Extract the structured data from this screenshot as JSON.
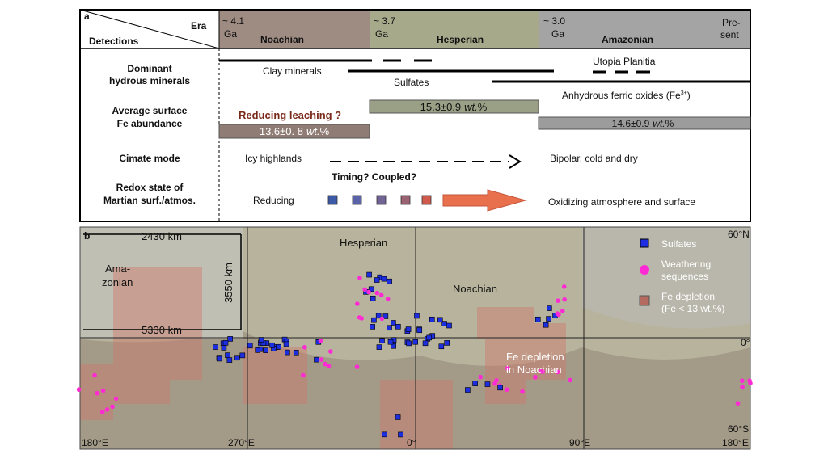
{
  "panel_a": {
    "label": "a",
    "header": {
      "era": "Era",
      "detections": "Detections"
    },
    "eras": [
      {
        "age": "~ 4.1",
        "unit": "Ga",
        "name": "Noachian"
      },
      {
        "age": "~ 3.7",
        "unit": "Ga",
        "name": "Hesperian"
      },
      {
        "age": "~ 3.0",
        "unit": "Ga",
        "name": "Amazonian",
        "end": [
          "Pre-",
          "sent"
        ]
      }
    ],
    "rows": [
      {
        "label": [
          "Dominant",
          "hydrous minerals"
        ],
        "items": [
          "Clay minerals",
          "Sulfates",
          "Utopia Planitia"
        ],
        "oxides": {
          "text": "Anhydrous ferric oxides (Fe",
          "sup": "3+",
          "close": ")"
        }
      },
      {
        "label": [
          "Average surface",
          "Fe abundance"
        ],
        "note": "Reducing leaching ?",
        "bars": [
          {
            "number": "13.6±0. 8",
            "unit": "wt.",
            "suffix": "%"
          },
          {
            "number": "15.3±0.9",
            "unit": "wt.",
            "suffix": "%"
          },
          {
            "number": "14.6±0.9",
            "unit": "wt.",
            "suffix": "%"
          }
        ]
      },
      {
        "label": [
          "Cimate mode"
        ],
        "items": [
          "Icy highlands",
          "Bipolar, cold and dry"
        ]
      },
      {
        "label": [
          "Redox state of",
          "Martian surf./atmos."
        ],
        "note": "Timing? Coupled?",
        "items": [
          "Reducing",
          "Oxidizing atmosphere and surface"
        ]
      }
    ]
  },
  "panel_b": {
    "label": "b",
    "scales": [
      "2430 km",
      "3550 km",
      "5330 km"
    ],
    "regions": {
      "amazonian": [
        "Ama-",
        "zonian"
      ],
      "hesperian": "Hesperian",
      "noachian": "Noachian",
      "fe_depletion": [
        "Fe depletion",
        "in Noachian"
      ]
    },
    "legend": [
      {
        "label": [
          "Sulfates"
        ]
      },
      {
        "label": [
          "Weathering",
          "sequences"
        ]
      },
      {
        "label": [
          "Fe depletion",
          "(Fe < 13 wt.%)"
        ]
      }
    ],
    "longitudes": [
      "180°E",
      "270°E",
      "0°",
      "90°E",
      "180°E"
    ],
    "latitudes": [
      "60°N",
      "0°",
      "60°S"
    ]
  }
}
